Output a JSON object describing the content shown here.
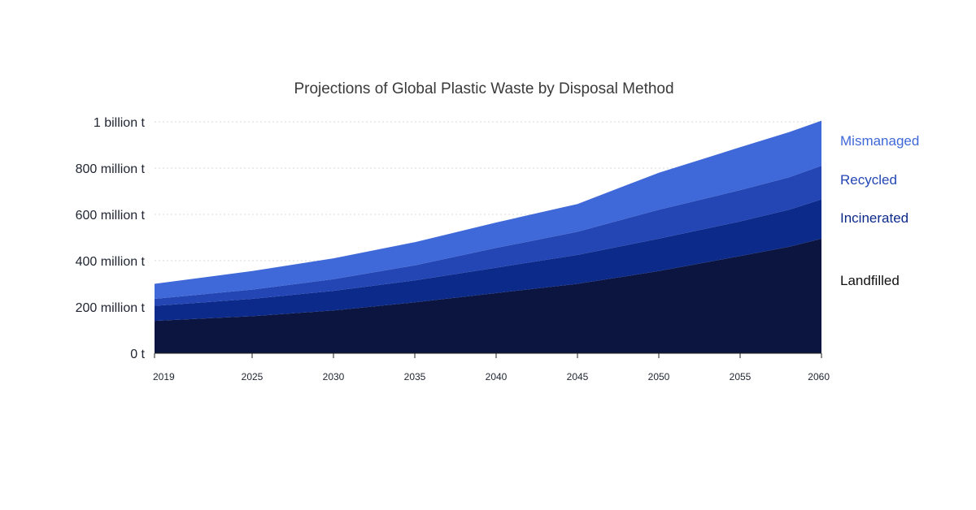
{
  "chart_data": {
    "type": "area",
    "stacked": true,
    "title": "Projections of Global Plastic Waste by Disposal Method",
    "xlabel": "",
    "ylabel": "",
    "x": [
      2019,
      2025,
      2030,
      2035,
      2040,
      2045,
      2050,
      2055,
      2058,
      2060
    ],
    "x_ticks": [
      "2019",
      "2025",
      "2030",
      "2035",
      "2040",
      "2045",
      "2050",
      "2055",
      "2060"
    ],
    "x_tick_values": [
      2019,
      2025,
      2030,
      2035,
      2040,
      2045,
      2050,
      2055,
      2060
    ],
    "y_ticks": [
      "0 t",
      "200 million t",
      "400 million t",
      "600 million t",
      "800 million t",
      "1 billion t"
    ],
    "y_tick_values": [
      0,
      200,
      400,
      600,
      800,
      1000
    ],
    "xlim": [
      2019,
      2060
    ],
    "ylim": [
      0,
      1000
    ],
    "grid": true,
    "legend_position": "right",
    "series": [
      {
        "name": "Landfilled",
        "color": "#0b1540",
        "values": [
          140,
          160,
          185,
          220,
          260,
          300,
          355,
          420,
          460,
          495
        ]
      },
      {
        "name": "Incinerated",
        "color": "#0c2a8a",
        "values": [
          65,
          75,
          85,
          95,
          110,
          125,
          140,
          150,
          160,
          170
        ]
      },
      {
        "name": "Recycled",
        "color": "#2346b4",
        "values": [
          30,
          40,
          50,
          65,
          85,
          100,
          125,
          135,
          140,
          145
        ]
      },
      {
        "name": "Mismanaged",
        "color": "#3f68d8",
        "values": [
          65,
          80,
          90,
          100,
          110,
          120,
          160,
          185,
          195,
          195
        ]
      }
    ],
    "legend_colors": {
      "Mismanaged": "#3f68d8",
      "Recycled": "#2346b4",
      "Incinerated": "#0c2a8a",
      "Landfilled": "#111111"
    }
  }
}
